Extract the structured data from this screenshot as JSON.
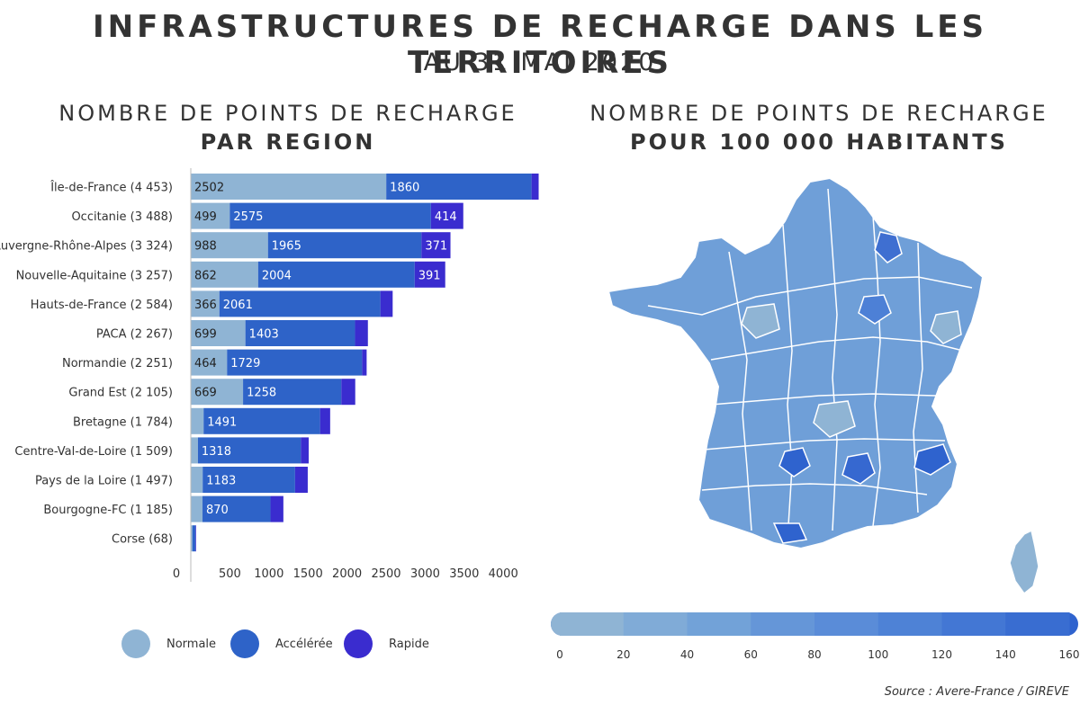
{
  "header": {
    "title": "INFRASTRUCTURES DE RECHARGE DANS LES TERRITOIRES",
    "subtitle": "AU 31 MAI 2020"
  },
  "left_panel": {
    "title_line1": "NOMBRE DE POINTS DE RECHARGE",
    "title_line2": "PAR REGION"
  },
  "right_panel": {
    "title_line1": "NOMBRE DE POINTS DE RECHARGE",
    "title_line2": "POUR 100 000 HABITANTS"
  },
  "legend": [
    {
      "name": "Normale",
      "color": "#8fb4d4"
    },
    {
      "name": "Accélérée",
      "color": "#2e63c8"
    },
    {
      "name": "Rapide",
      "color": "#3a2ccf"
    }
  ],
  "source": "Source : Avere-France / GIREVE",
  "chart_data": [
    {
      "type": "bar",
      "orientation": "horizontal",
      "stacked": true,
      "categories": [
        "Île-de-France (4 453)",
        "Occitanie (3 488)",
        "Auvergne-Rhône-Alpes (3 324)",
        "Nouvelle-Aquitaine (3 257)",
        "Hauts-de-France (2 584)",
        "PACA (2 267)",
        "Normandie (2 251)",
        "Grand Est (2 105)",
        "Bretagne (1 784)",
        "Centre-Val-de-Loire (1 509)",
        "Pays de la Loire (1 497)",
        "Bourgogne-FC (1 185)",
        "Corse (68)"
      ],
      "series": [
        {
          "name": "Normale",
          "color": "#8fb4d4",
          "values": [
            2502,
            499,
            988,
            862,
            366,
            699,
            464,
            669,
            164,
            91,
            152,
            150,
            20
          ],
          "labels": [
            "2502",
            "499",
            "988",
            "862",
            "366",
            "699",
            "464",
            "669",
            "",
            "",
            "",
            "",
            ""
          ]
        },
        {
          "name": "Accélérée",
          "color": "#2e63c8",
          "values": [
            1860,
            2575,
            1965,
            2004,
            2061,
            1403,
            1729,
            1258,
            1491,
            1318,
            1183,
            870,
            40
          ],
          "labels": [
            "1860",
            "2575",
            "1965",
            "2004",
            "2061",
            "1403",
            "1729",
            "1258",
            "1491",
            "1318",
            "1183",
            "870",
            ""
          ]
        },
        {
          "name": "Rapide",
          "color": "#3a2ccf",
          "values": [
            91,
            414,
            371,
            391,
            157,
            165,
            58,
            178,
            129,
            100,
            162,
            165,
            8
          ],
          "labels": [
            "",
            "414",
            "371",
            "391",
            "",
            "",
            "",
            "",
            "",
            "",
            "",
            "",
            ""
          ]
        }
      ],
      "xticks": [
        0,
        500,
        1000,
        1500,
        2000,
        2500,
        3000,
        3500,
        4000
      ],
      "xlim": [
        0,
        4500
      ]
    },
    {
      "type": "choropleth",
      "title": "NOMBRE DE POINTS DE RECHARGE POUR 100 000 HABITANTS",
      "scale": {
        "ticks": [
          0,
          20,
          40,
          60,
          80,
          100,
          120,
          140,
          160
        ],
        "colors": [
          "#8fb4d4",
          "#80abd7",
          "#72a2d8",
          "#6596d8",
          "#5a8cd8",
          "#4e82d6",
          "#4377d4",
          "#396dd1",
          "#2f63ce"
        ]
      }
    }
  ]
}
